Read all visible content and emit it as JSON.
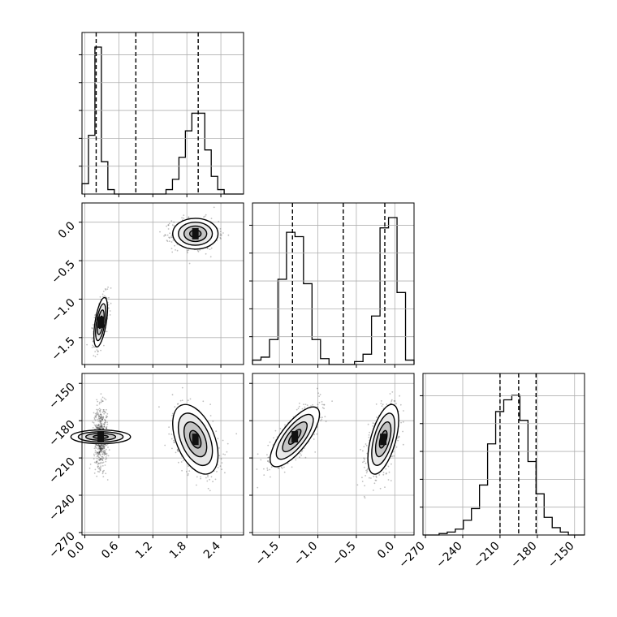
{
  "chart_data": {
    "type": "corner",
    "grid": true,
    "colors": {
      "line": "#000000",
      "grid": "#b0b0b0",
      "points": "#000000"
    },
    "parameters": [
      {
        "range": [
          -0.05,
          2.8
        ],
        "quantiles": [
          0.2,
          0.9,
          2.0
        ],
        "ticks": [
          0.0,
          0.6,
          1.2,
          1.8,
          2.4
        ],
        "tick_labels": [
          "0.0",
          "0.6",
          "1.2",
          "1.8",
          "2.4"
        ],
        "hist_bins": [
          0.07,
          0.4,
          1.0,
          0.22,
          0.03,
          0.0,
          0.0,
          0.0,
          0.0,
          0.0,
          0.0,
          0.0,
          0.0,
          0.03,
          0.1,
          0.25,
          0.43,
          0.55,
          0.55,
          0.3,
          0.12,
          0.03,
          0.0,
          0.0,
          0.0
        ]
      },
      {
        "range": [
          -1.85,
          0.25
        ],
        "quantiles": [
          -1.33,
          -0.67,
          -0.13
        ],
        "ticks": [
          -1.5,
          -1.0,
          -0.5,
          0.0
        ],
        "tick_labels": [
          "−1.5",
          "−1.0",
          "−0.5",
          "0.0"
        ],
        "hist_bins": [
          0.03,
          0.05,
          0.17,
          0.58,
          0.9,
          0.87,
          0.55,
          0.17,
          0.04,
          0.0,
          0.0,
          0.0,
          0.02,
          0.07,
          0.33,
          0.93,
          1.0,
          0.49,
          0.03
        ]
      },
      {
        "range": [
          -272,
          -142
        ],
        "quantiles": [
          -210,
          -195,
          -181
        ],
        "ticks": [
          -270,
          -240,
          -210,
          -180,
          -150
        ],
        "tick_labels": [
          "−270",
          "−240",
          "−210",
          "−180",
          "−150"
        ],
        "hist_bins": [
          0.0,
          0.0,
          0.01,
          0.02,
          0.04,
          0.1,
          0.18,
          0.34,
          0.62,
          0.84,
          0.92,
          0.95,
          0.78,
          0.5,
          0.28,
          0.12,
          0.05,
          0.02,
          0.0,
          0.0
        ]
      }
    ],
    "clusters": [
      {
        "mean": [
          0.28,
          -1.3,
          -193
        ],
        "sd": [
          0.06,
          0.16,
          12
        ],
        "weight": 0.5
      },
      {
        "mean": [
          1.95,
          -0.15,
          -195
        ],
        "sd": [
          0.2,
          0.1,
          14
        ],
        "weight": 0.5
      }
    ],
    "correlations": {
      "1-0": [
        0.55,
        0.0
      ],
      "2-0": [
        0.0,
        -0.45
      ],
      "2-1": [
        0.75,
        0.55
      ]
    }
  }
}
